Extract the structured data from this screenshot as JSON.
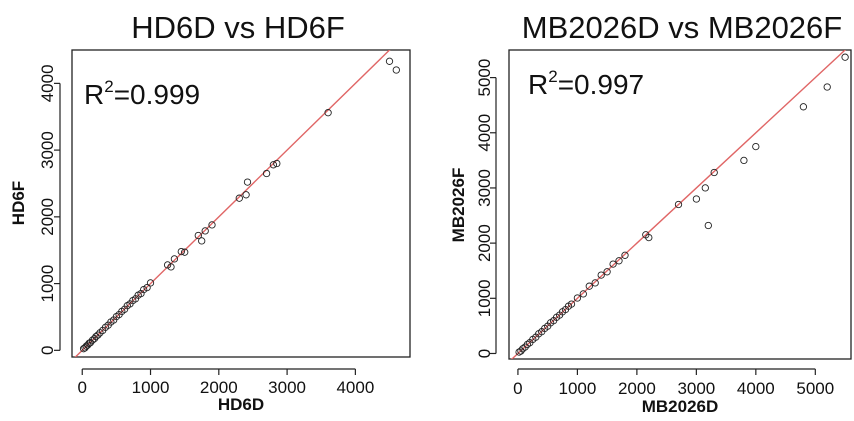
{
  "chart_data": [
    {
      "type": "scatter",
      "title": "HD6D vs HD6F",
      "xlabel": "HD6D",
      "ylabel": "HD6F",
      "annotation": {
        "prefix": "R",
        "sup": "2",
        "value": "=0.999"
      },
      "xlim": [
        -150,
        4800
      ],
      "ylim": [
        -100,
        4500
      ],
      "xticks": [
        0,
        1000,
        2000,
        3000,
        4000
      ],
      "yticks": [
        0,
        1000,
        2000,
        3000,
        4000
      ],
      "xtick_labels": [
        "0",
        "1000",
        "2000",
        "3000",
        "4000"
      ],
      "ytick_labels": [
        "0",
        "1000",
        "2000",
        "3000",
        "4000"
      ],
      "fit_line": {
        "slope": 1.0,
        "intercept": 0,
        "color": "#e06666"
      },
      "points": [
        [
          20,
          25
        ],
        [
          40,
          38
        ],
        [
          60,
          62
        ],
        [
          80,
          78
        ],
        [
          100,
          105
        ],
        [
          120,
          115
        ],
        [
          150,
          152
        ],
        [
          180,
          176
        ],
        [
          200,
          205
        ],
        [
          230,
          228
        ],
        [
          260,
          262
        ],
        [
          300,
          298
        ],
        [
          340,
          345
        ],
        [
          380,
          376
        ],
        [
          420,
          424
        ],
        [
          460,
          455
        ],
        [
          500,
          505
        ],
        [
          540,
          536
        ],
        [
          580,
          584
        ],
        [
          620,
          615
        ],
        [
          660,
          668
        ],
        [
          700,
          695
        ],
        [
          740,
          745
        ],
        [
          780,
          772
        ],
        [
          820,
          826
        ],
        [
          860,
          850
        ],
        [
          900,
          910
        ],
        [
          950,
          940
        ],
        [
          1000,
          1010
        ],
        [
          1250,
          1280
        ],
        [
          1300,
          1250
        ],
        [
          1350,
          1370
        ],
        [
          1450,
          1480
        ],
        [
          1500,
          1470
        ],
        [
          1700,
          1720
        ],
        [
          1750,
          1640
        ],
        [
          1800,
          1790
        ],
        [
          1900,
          1880
        ],
        [
          2300,
          2280
        ],
        [
          2400,
          2330
        ],
        [
          2420,
          2520
        ],
        [
          2700,
          2650
        ],
        [
          2800,
          2780
        ],
        [
          2850,
          2800
        ],
        [
          3600,
          3560
        ],
        [
          4500,
          4330
        ],
        [
          4600,
          4200
        ]
      ]
    },
    {
      "type": "scatter",
      "title": "MB2026D vs MB2026F",
      "xlabel": "MB2026D",
      "ylabel": "MB2026F",
      "annotation": {
        "prefix": "R",
        "sup": "2",
        "value": "=0.997"
      },
      "xlim": [
        -150,
        5600
      ],
      "ylim": [
        -100,
        5500
      ],
      "xticks": [
        0,
        1000,
        2000,
        3000,
        4000,
        5000
      ],
      "yticks": [
        0,
        1000,
        2000,
        3000,
        4000,
        5000
      ],
      "xtick_labels": [
        "0",
        "1000",
        "2000",
        "3000",
        "4000",
        "5000"
      ],
      "ytick_labels": [
        "0",
        "1000",
        "2000",
        "3000",
        "4000",
        "5000"
      ],
      "fit_line": {
        "slope": 1.0,
        "intercept": 0,
        "color": "#e06666"
      },
      "points": [
        [
          20,
          25
        ],
        [
          50,
          45
        ],
        [
          80,
          85
        ],
        [
          120,
          115
        ],
        [
          160,
          165
        ],
        [
          200,
          195
        ],
        [
          250,
          255
        ],
        [
          300,
          295
        ],
        [
          350,
          356
        ],
        [
          400,
          395
        ],
        [
          450,
          455
        ],
        [
          500,
          495
        ],
        [
          550,
          556
        ],
        [
          600,
          595
        ],
        [
          650,
          655
        ],
        [
          700,
          696
        ],
        [
          750,
          755
        ],
        [
          800,
          796
        ],
        [
          850,
          856
        ],
        [
          900,
          895
        ],
        [
          1000,
          1005
        ],
        [
          1100,
          1080
        ],
        [
          1200,
          1220
        ],
        [
          1300,
          1280
        ],
        [
          1400,
          1420
        ],
        [
          1500,
          1480
        ],
        [
          1600,
          1620
        ],
        [
          1700,
          1680
        ],
        [
          1800,
          1780
        ],
        [
          2150,
          2150
        ],
        [
          2200,
          2100
        ],
        [
          2700,
          2700
        ],
        [
          3000,
          2800
        ],
        [
          3150,
          3000
        ],
        [
          3200,
          2320
        ],
        [
          3300,
          3280
        ],
        [
          3800,
          3500
        ],
        [
          4000,
          3750
        ],
        [
          4800,
          4470
        ],
        [
          5200,
          4830
        ],
        [
          5500,
          5370
        ]
      ]
    }
  ]
}
